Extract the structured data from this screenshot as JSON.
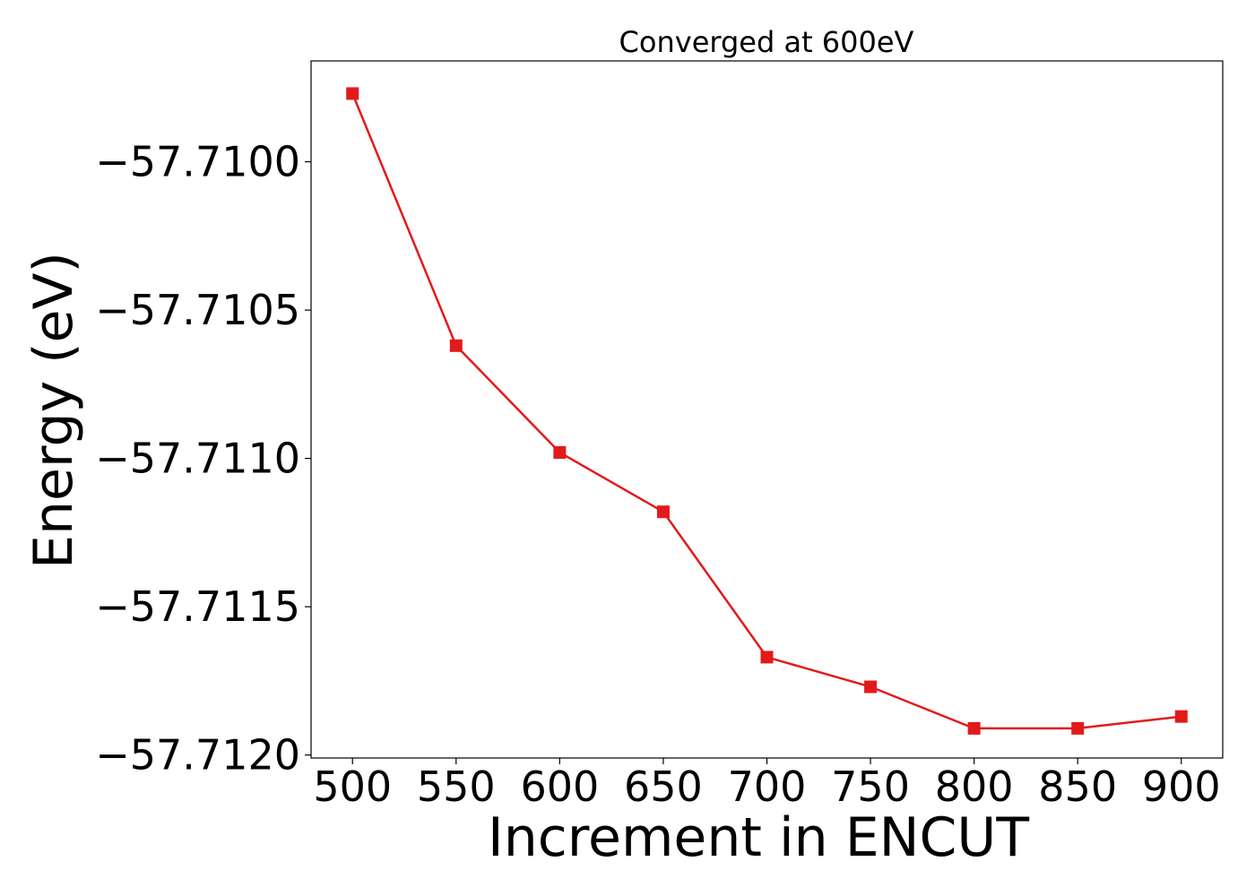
{
  "chart_data": {
    "type": "line",
    "title": "Converged at 600eV",
    "xlabel": "Increment in ENCUT",
    "ylabel": "Energy (eV)",
    "x": [
      500,
      550,
      600,
      650,
      700,
      750,
      800,
      850,
      900
    ],
    "series": [
      {
        "values": [
          -57.70977,
          -57.71062,
          -57.71098,
          -57.71118,
          -57.71167,
          -57.71177,
          -57.71191,
          -57.71191,
          -57.71187
        ],
        "color": "#e31a1c",
        "marker": "square"
      }
    ],
    "xticks": [
      500,
      550,
      600,
      650,
      700,
      750,
      800,
      850,
      900
    ],
    "xtick_labels": [
      "500",
      "550",
      "600",
      "650",
      "700",
      "750",
      "800",
      "850",
      "900"
    ],
    "yticks": [
      -57.71,
      -57.7105,
      -57.711,
      -57.7115,
      -57.712
    ],
    "ytick_labels": [
      "−57.7100",
      "−57.7105",
      "−57.7110",
      "−57.7115",
      "−57.7120"
    ],
    "xlim": [
      480,
      920
    ],
    "ylim": [
      -57.71201,
      -57.70966
    ],
    "grid": false,
    "legend": "none"
  }
}
